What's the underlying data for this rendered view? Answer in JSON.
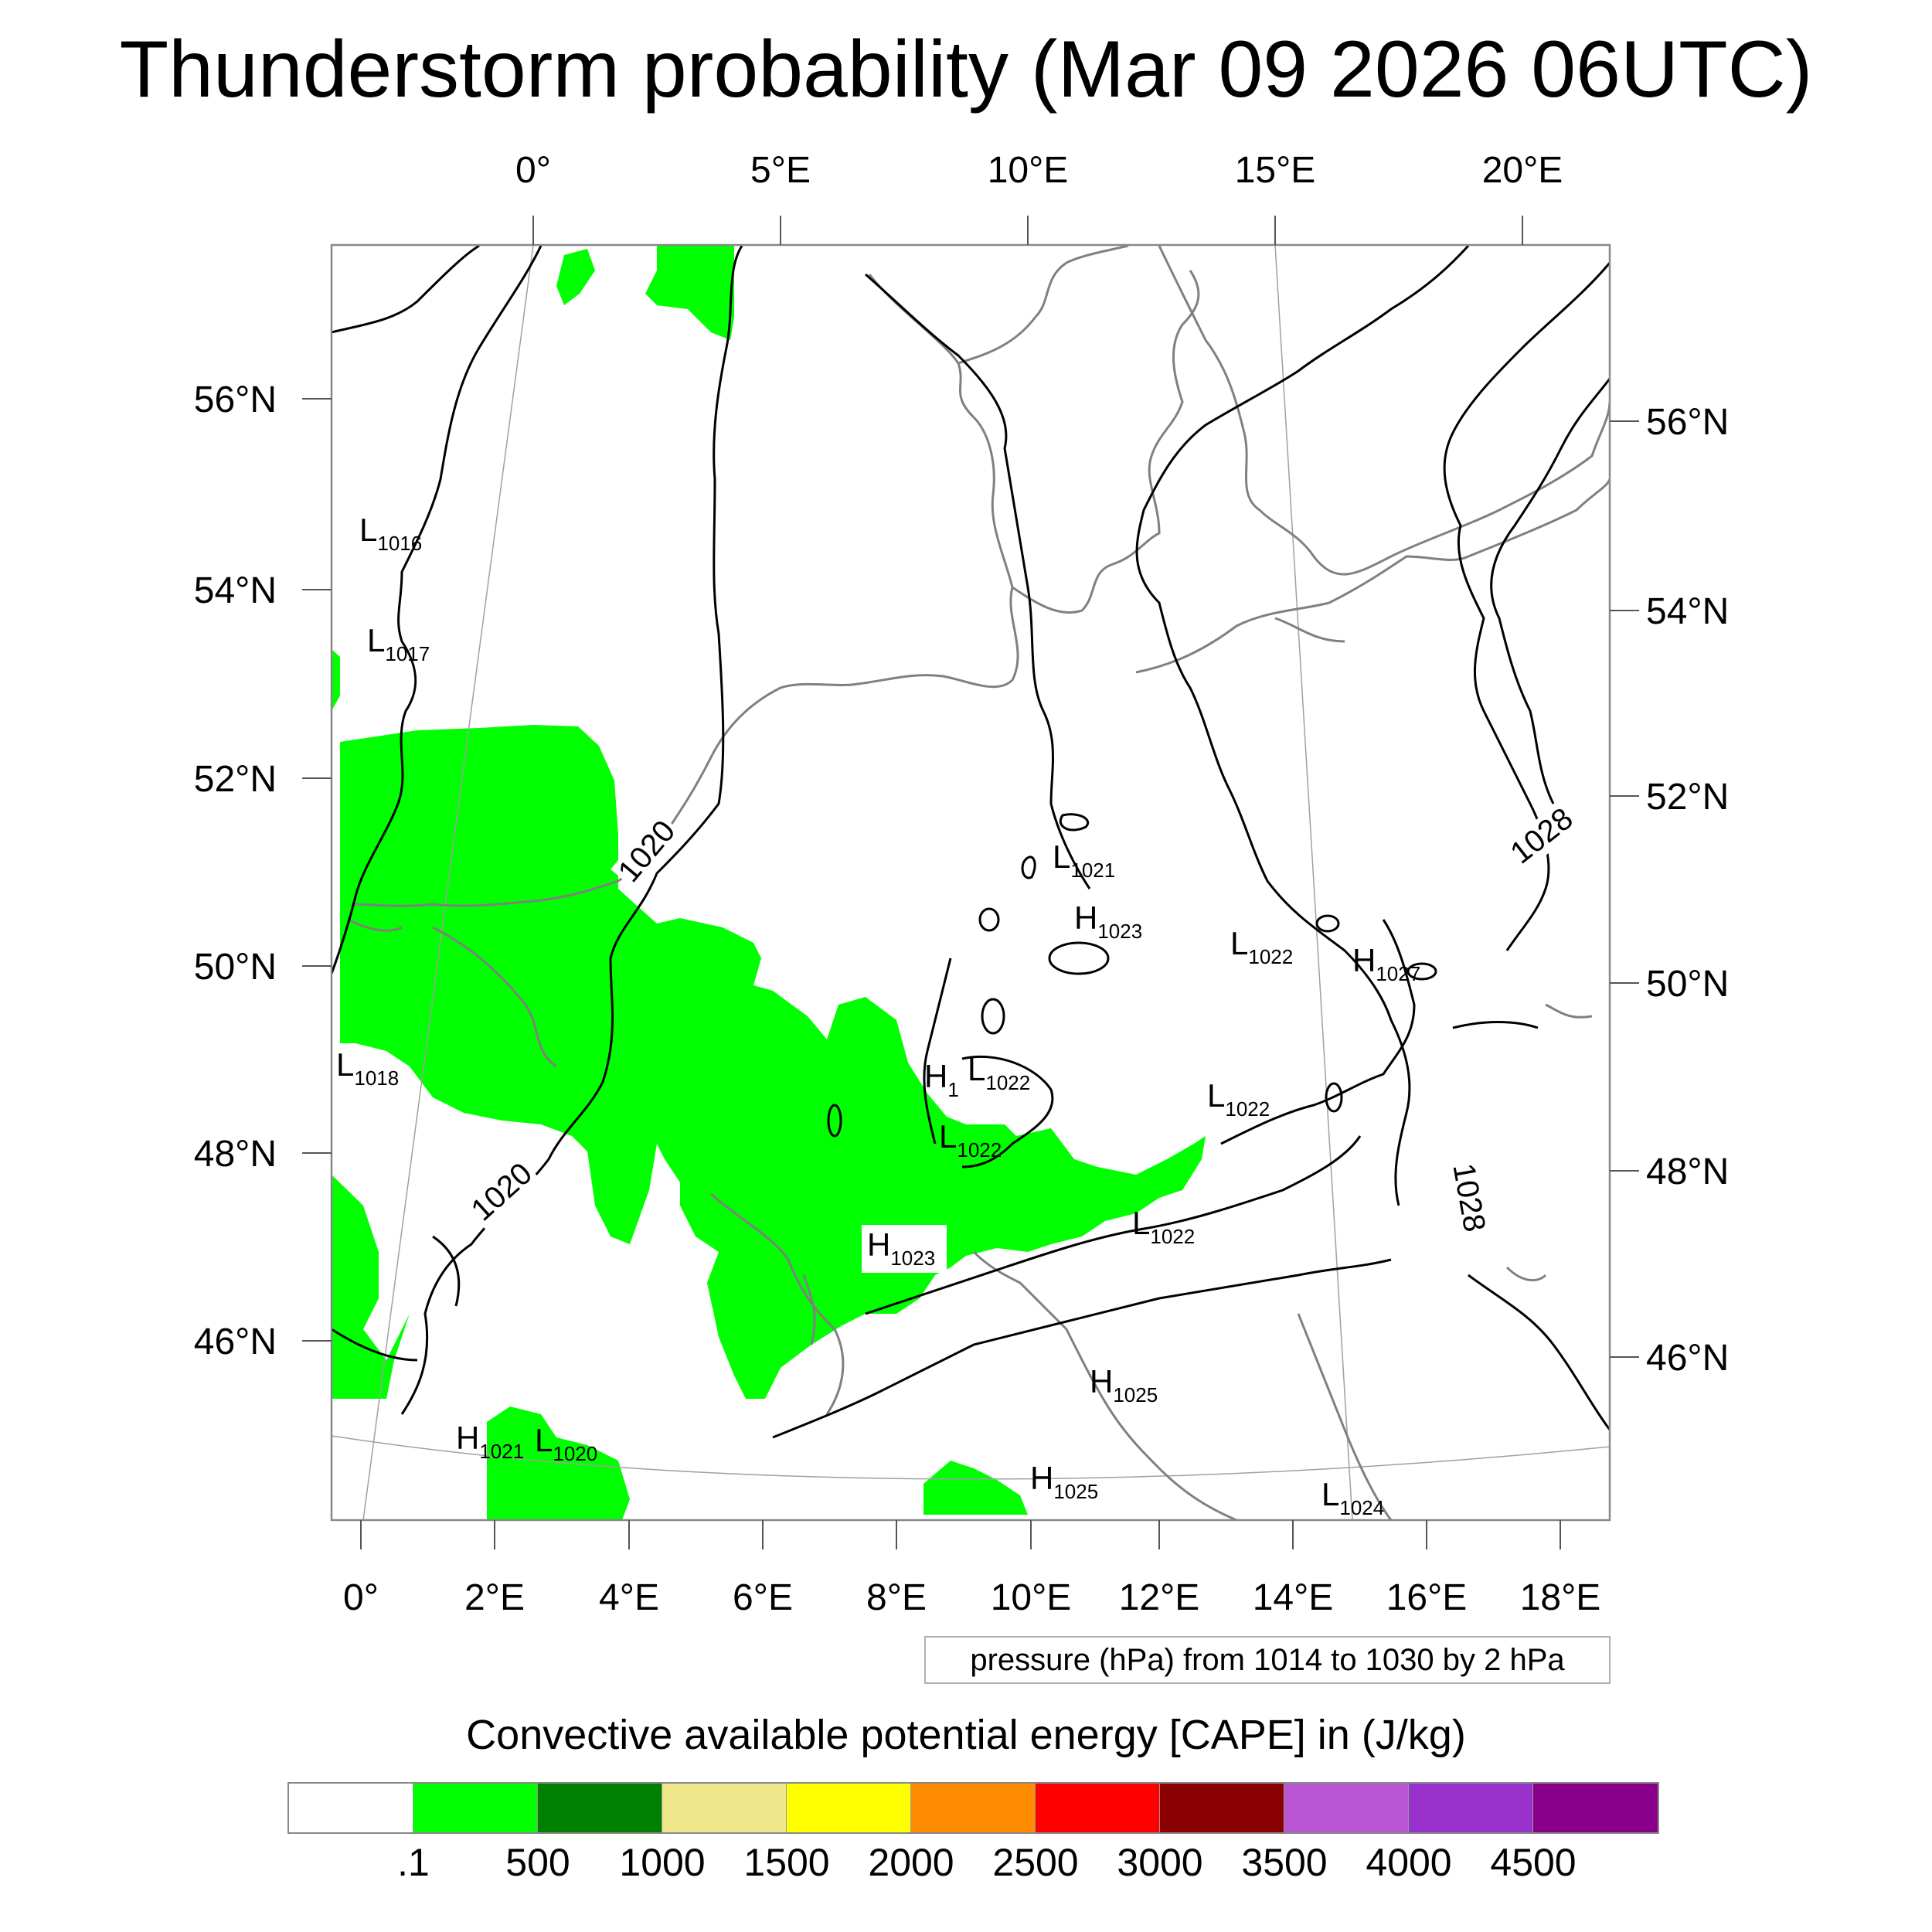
{
  "title": "Thunderstorm probability (Mar 09 2026 06UTC)",
  "axes": {
    "top_lon_labels": [
      "0°",
      "5°E",
      "10°E",
      "15°E",
      "20°E"
    ],
    "bottom_lon_labels": [
      "0°",
      "2°E",
      "4°E",
      "6°E",
      "8°E",
      "10°E",
      "12°E",
      "14°E",
      "16°E",
      "18°E"
    ],
    "left_lat_labels": [
      "56°N",
      "54°N",
      "52°N",
      "50°N",
      "48°N",
      "46°N"
    ],
    "right_lat_labels": [
      "56°N",
      "54°N",
      "52°N",
      "50°N",
      "48°N",
      "46°N"
    ]
  },
  "isobar_labels": [
    "1020",
    "1020",
    "1028",
    "1028"
  ],
  "pressure_centers": [
    {
      "type": "L",
      "value": "1016"
    },
    {
      "type": "L",
      "value": "1017"
    },
    {
      "type": "L",
      "value": "1018"
    },
    {
      "type": "L",
      "value": "1021"
    },
    {
      "type": "H",
      "value": "1023"
    },
    {
      "type": "L",
      "value": "1022"
    },
    {
      "type": "H",
      "value": "1027"
    },
    {
      "type": "H",
      "value": "1"
    },
    {
      "type": "L",
      "value": "1022"
    },
    {
      "type": "L",
      "value": "1022"
    },
    {
      "type": "L",
      "value": "1022"
    },
    {
      "type": "H",
      "value": "1023"
    },
    {
      "type": "L",
      "value": "1022"
    },
    {
      "type": "H",
      "value": "1025"
    },
    {
      "type": "H",
      "value": "1021"
    },
    {
      "type": "L",
      "value": "1020"
    },
    {
      "type": "H",
      "value": "1025"
    },
    {
      "type": "L",
      "value": "1024"
    }
  ],
  "pressure_note": "pressure (hPa) from 1014 to 1030 by 2 hPa",
  "colorbar": {
    "title": "Convective available potential energy [CAPE] in (J/kg)",
    "colors": [
      "#ffffff",
      "#00ff00",
      "#008000",
      "#f0e68c",
      "#ffff00",
      "#ff8c00",
      "#ff0000",
      "#8b0000",
      "#ba55d3",
      "#9932cc",
      "#8b008b"
    ],
    "labels": [
      ".1",
      "500",
      "1000",
      "1500",
      "2000",
      "2500",
      "3000",
      "3500",
      "4000",
      "4500"
    ]
  },
  "colors": {
    "cape_fill": "#00ff00",
    "coastline": "#808080",
    "isobar": "#000000",
    "grid": "#a0a0a0"
  }
}
